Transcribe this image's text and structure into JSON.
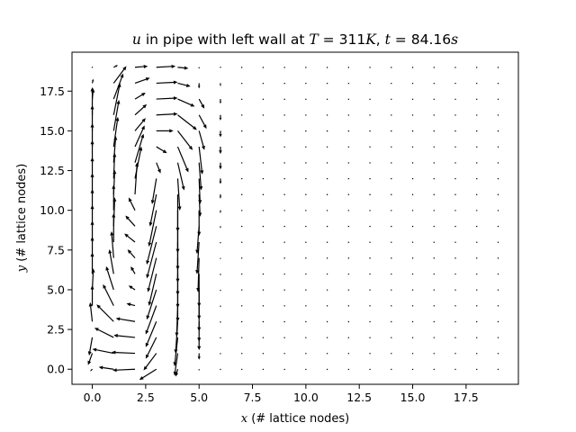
{
  "chart_data": {
    "type": "quiver",
    "title": {
      "var": "u",
      "text_mid": " in pipe with left wall at ",
      "temp_var": "T",
      "temp_eq": " = 311",
      "temp_unit": "K",
      "sep": ", ",
      "time_var": "t",
      "time_eq": " = 84.16",
      "time_unit": "s"
    },
    "xlabel": {
      "var": "x",
      "text": " (# lattice nodes)"
    },
    "ylabel": {
      "var": "y",
      "text": " (# lattice nodes)"
    },
    "xlim": [
      -0.95,
      19.95
    ],
    "ylim": [
      -0.95,
      19.95
    ],
    "xticks": [
      0,
      2.5,
      5,
      7.5,
      10,
      12.5,
      15,
      17.5
    ],
    "xtick_labels": [
      "0.0",
      "2.5",
      "5.0",
      "7.5",
      "10.0",
      "12.5",
      "15.0",
      "17.5"
    ],
    "yticks": [
      0,
      2.5,
      5,
      7.5,
      10,
      12.5,
      15,
      17.5
    ],
    "ytick_labels": [
      "0.0",
      "2.5",
      "5.0",
      "7.5",
      "10.0",
      "12.5",
      "15.0",
      "17.5"
    ],
    "grid": {
      "nx": 20,
      "ny": 20
    },
    "arrow_color": "#000000",
    "scale_cells_per_unit": 1.0,
    "columns": [
      {
        "x": 0,
        "u": [
          -0.1,
          -0.2,
          -0.15,
          -0.1,
          0.0,
          0.05,
          0.0,
          0.0,
          0.0,
          0.0,
          0.0,
          0.0,
          0.0,
          0.0,
          0.0,
          0.0,
          0.0,
          0.05,
          0.05,
          0.0
        ],
        "v": [
          -0.1,
          -0.55,
          -0.85,
          0.9,
          0.95,
          1.0,
          1.0,
          1.0,
          1.0,
          1.0,
          1.0,
          1.0,
          1.0,
          1.05,
          1.1,
          1.2,
          1.3,
          0.5,
          0.2,
          0.0
        ]
      },
      {
        "x": 1,
        "u": [
          -0.7,
          -1.0,
          -0.9,
          -0.8,
          -0.5,
          -0.35,
          -0.2,
          -0.1,
          0.0,
          0.05,
          0.0,
          0.05,
          0.05,
          0.1,
          0.2,
          0.25,
          0.3,
          0.45,
          0.6,
          0.2
        ],
        "v": [
          0.1,
          0.2,
          0.45,
          0.8,
          1.0,
          1.1,
          1.15,
          1.25,
          1.35,
          1.35,
          1.2,
          1.15,
          1.2,
          1.25,
          1.4,
          1.45,
          1.5,
          1.2,
          0.8,
          0.1
        ]
      },
      {
        "x": 2,
        "u": [
          -1.05,
          -1.1,
          -1.0,
          -0.9,
          -0.4,
          -0.3,
          -0.2,
          -0.35,
          -0.5,
          -0.45,
          -0.3,
          0.1,
          0.3,
          0.4,
          0.45,
          0.5,
          0.55,
          0.5,
          0.7,
          0.6
        ],
        "v": [
          -0.05,
          0.05,
          0.1,
          0.15,
          0.1,
          0.2,
          0.35,
          0.4,
          0.4,
          0.5,
          0.6,
          1.5,
          1.5,
          1.35,
          1.0,
          0.6,
          0.5,
          0.3,
          0.25,
          0.05
        ]
      },
      {
        "x": 3,
        "u": [
          -0.8,
          -0.6,
          -0.5,
          -0.5,
          -0.5,
          -0.45,
          -0.35,
          -0.4,
          -0.45,
          -0.45,
          -0.35,
          -0.3,
          -0.2,
          0.2,
          0.5,
          0.8,
          1.0,
          1.0,
          1.0,
          0.9
        ],
        "v": [
          -0.5,
          -0.8,
          -1.0,
          -1.2,
          -1.35,
          -1.4,
          -1.5,
          -1.6,
          -1.7,
          -1.8,
          -1.7,
          -1.5,
          -1.2,
          -0.5,
          -0.3,
          0.0,
          0.05,
          0.05,
          0.05,
          0.05
        ]
      },
      {
        "x": 4,
        "u": [
          -0.1,
          -0.15,
          -0.15,
          -0.1,
          -0.05,
          0.0,
          0.0,
          0.0,
          0.0,
          0.0,
          0.0,
          0.0,
          0.1,
          0.3,
          0.5,
          0.7,
          0.9,
          0.8,
          0.6,
          0.5
        ],
        "v": [
          -0.35,
          -1.05,
          -1.35,
          -1.5,
          -1.45,
          -1.5,
          -1.6,
          -1.75,
          -1.9,
          -2.05,
          -2.0,
          -1.75,
          -1.5,
          -1.3,
          -1.2,
          -0.9,
          -0.7,
          -0.35,
          -0.15,
          -0.05
        ]
      },
      {
        "x": 5,
        "u": [
          0.0,
          0.0,
          0.0,
          0.0,
          0.0,
          0.0,
          0.0,
          -0.05,
          -0.1,
          -0.1,
          0.0,
          0.05,
          0.05,
          0.1,
          0.15,
          0.25,
          0.35,
          0.25,
          0.0,
          0.0
        ],
        "v": [
          -0.05,
          -0.3,
          -0.6,
          -0.95,
          -1.2,
          -1.4,
          -1.55,
          -1.6,
          -1.5,
          -1.3,
          -1.2,
          -1.05,
          -1.2,
          -1.3,
          -1.3,
          -0.9,
          -0.65,
          -0.45,
          -0.25,
          -0.05
        ]
      },
      {
        "x": 6,
        "u": [
          0,
          0,
          0,
          0,
          0,
          0,
          0,
          0,
          0,
          0,
          0,
          0,
          0,
          0,
          0,
          0,
          0,
          0,
          0,
          0
        ],
        "v": [
          -0.02,
          -0.03,
          -0.04,
          -0.05,
          -0.05,
          -0.05,
          -0.06,
          -0.07,
          -0.08,
          -0.1,
          -0.14,
          -0.2,
          -0.26,
          -0.32,
          -0.34,
          -0.3,
          -0.26,
          -0.22,
          -0.15,
          0.0
        ]
      },
      {
        "x": 7,
        "u": [
          0,
          0,
          0,
          0,
          0,
          0,
          0,
          0,
          0,
          0,
          0,
          0,
          0,
          0,
          0,
          0,
          0,
          0,
          0,
          0
        ],
        "v": [
          -0.02,
          -0.02,
          -0.02,
          -0.02,
          -0.02,
          -0.02,
          -0.02,
          -0.02,
          -0.02,
          -0.02,
          -0.02,
          -0.02,
          -0.02,
          -0.02,
          -0.02,
          -0.02,
          -0.02,
          -0.02,
          -0.02,
          -0.02
        ]
      }
    ],
    "background_v": -0.02
  }
}
